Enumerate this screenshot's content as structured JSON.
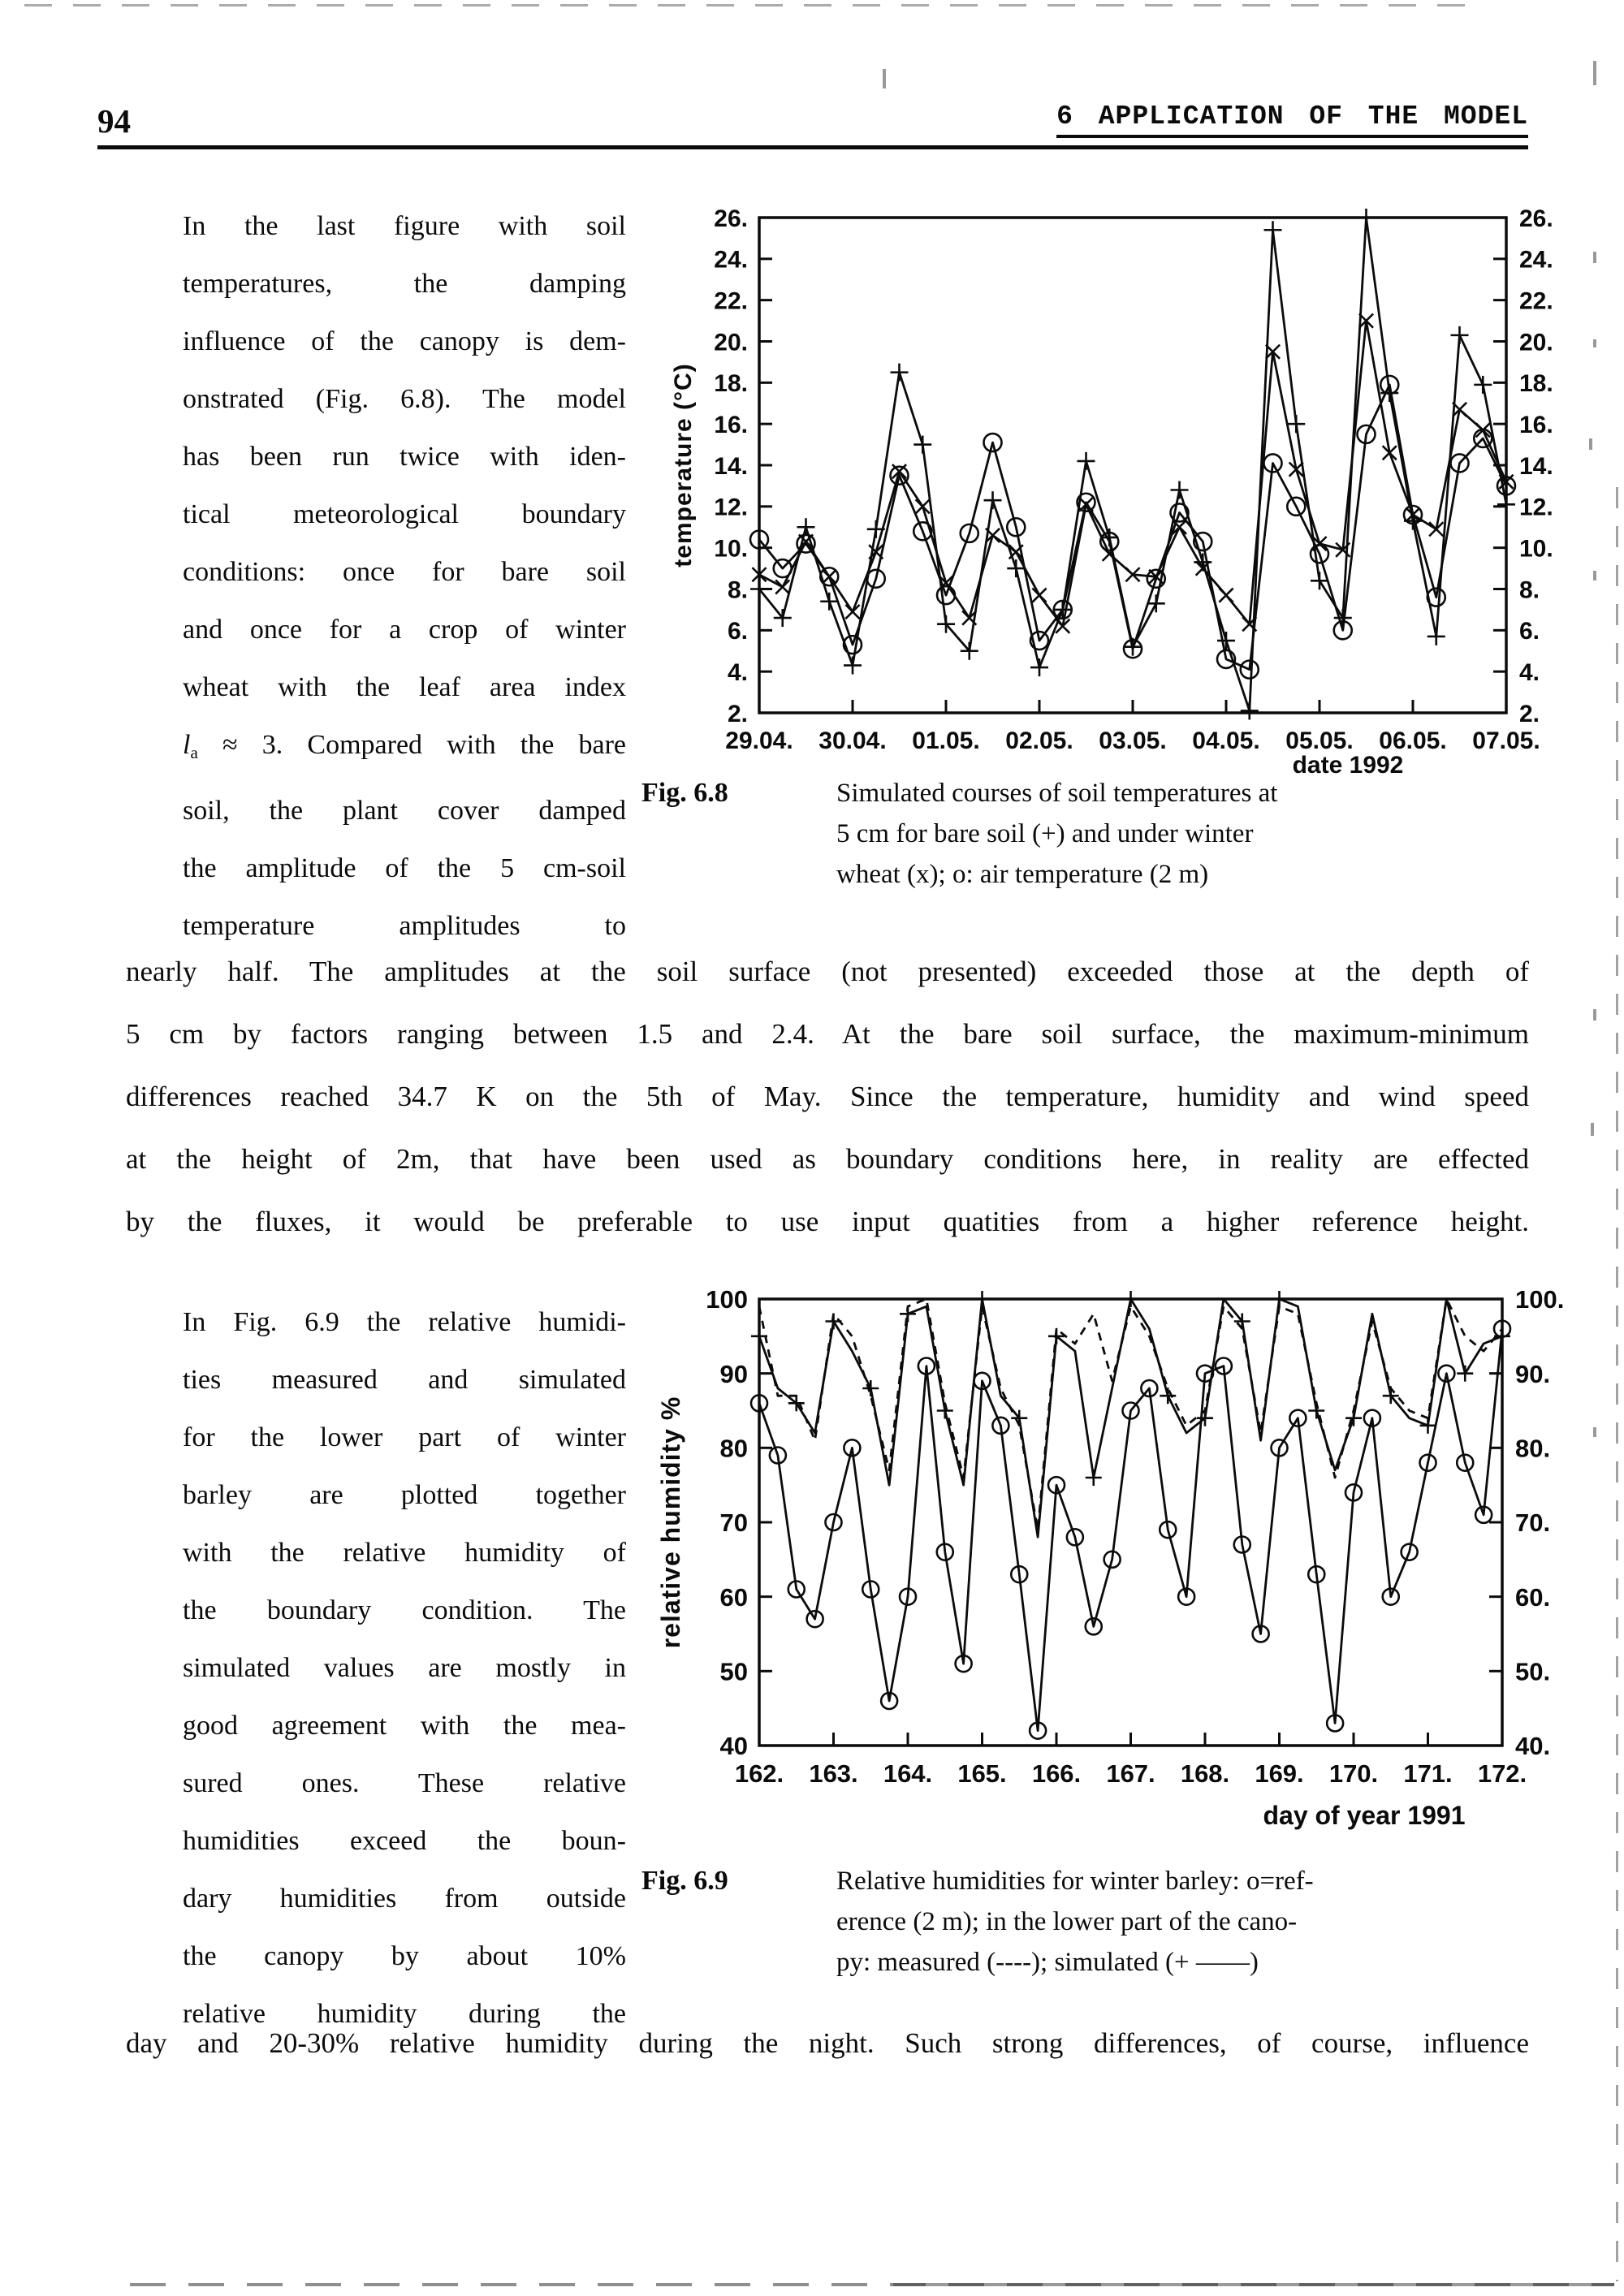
{
  "colors": {
    "ink": "#0b0b0b",
    "paper": "#ffffff"
  },
  "header": {
    "page_number": "94",
    "chapter": "6  APPLICATION OF THE MODEL"
  },
  "paragraphs": {
    "p1": [
      "In the last figure with soil",
      "temperatures, the damping",
      "influence of the canopy is dem-",
      "onstrated (Fig. 6.8). The model",
      "has been run twice with iden-",
      "tical meteorological boundary",
      "conditions: once for bare soil",
      "and once for a crop of winter",
      "wheat with the leaf area index",
      "l_a ≈ 3. Compared with the bare",
      "soil, the plant cover damped",
      "the amplitude of the 5 cm-soil",
      "temperature amplitudes to"
    ],
    "p2": [
      "nearly half. The amplitudes at the soil surface (not presented) exceeded those at the depth of",
      "5 cm by factors ranging between 1.5 and 2.4. At the bare soil surface, the maximum-minimum",
      "differences reached 34.7 K on the 5th of May. Since the temperature, humidity and wind speed",
      "at the height of 2m, that have been used as boundary conditions here, in reality are effected",
      "by the fluxes, it would be preferable to use input quatities from a higher reference height."
    ],
    "p3": [
      "In Fig. 6.9 the relative humidi-",
      "ties measured and simulated",
      "for the lower part of winter",
      "barley are plotted together",
      "with the relative humidity of",
      "the boundary condition. The",
      "simulated values are mostly in",
      "good agreement with the mea-",
      "sured ones. These relative",
      "humidities exceed the boun-",
      "dary humidities from outside",
      "the canopy by about 10%",
      "relative humidity during the"
    ],
    "p4": [
      "day and 20-30% relative humidity during the night. Such strong differences, of course, influence"
    ]
  },
  "fig68": {
    "label": "Fig. 6.8",
    "caption_lines": [
      "Simulated courses of soil temperatures at",
      "5 cm for bare soil (+) and under winter",
      "wheat (x); o: air temperature (2 m)"
    ]
  },
  "fig69": {
    "label": "Fig. 6.9",
    "caption_lines": [
      "Relative humidities for winter barley: o=ref-",
      "erence (2 m); in the lower part of the cano-",
      "py: measured (----); simulated (+ ——)"
    ]
  },
  "chart_data": [
    {
      "id": "fig-6-8",
      "type": "line",
      "title": "",
      "xlabel": "date  1992",
      "ylabel": "temperature  (°C)",
      "xlim": [
        0,
        8
      ],
      "ylim": [
        2,
        26
      ],
      "grid": false,
      "legend_position": "none (legend given in caption)",
      "x_tick_values": [
        0,
        1,
        2,
        3,
        4,
        5,
        6,
        7,
        8
      ],
      "x_tick_labels": [
        "29.04.",
        "30.04.",
        "01.05.",
        "02.05.",
        "03.05.",
        "04.05.",
        "05.05.",
        "06.05.",
        "07.05."
      ],
      "y_tick_values": [
        2,
        4,
        6,
        8,
        10,
        12,
        14,
        16,
        18,
        20,
        22,
        24,
        26
      ],
      "y_tick_labels_left": [
        "2.",
        "4.",
        "6.",
        "8.",
        "10.",
        "12.",
        "14.",
        "16.",
        "18.",
        "20.",
        "22.",
        "24.",
        "26."
      ],
      "y_tick_labels_right": [
        "2.",
        "4.",
        "6.",
        "8.",
        "10.",
        "12.",
        "14.",
        "16.",
        "18.",
        "20.",
        "22.",
        "24.",
        "26."
      ],
      "x_unit": "days since 29.04.1992 00:00 (approx.)",
      "x": [
        0,
        0.25,
        0.5,
        0.75,
        1,
        1.25,
        1.5,
        1.75,
        2,
        2.25,
        2.5,
        2.75,
        3,
        3.25,
        3.5,
        3.75,
        4,
        4.25,
        4.5,
        4.75,
        5,
        5.25,
        5.5,
        5.75,
        6,
        6.25,
        6.5,
        6.75,
        7,
        7.25,
        7.5,
        7.75,
        8
      ],
      "series": [
        {
          "name": "bare soil (+)",
          "marker": "plus",
          "marker_every": 1,
          "dashed": false,
          "values": [
            8.0,
            6.6,
            11.0,
            7.4,
            4.3,
            10.9,
            18.5,
            15.0,
            6.3,
            5.0,
            12.3,
            9.0,
            4.2,
            7.0,
            14.2,
            10.5,
            5.2,
            7.3,
            12.8,
            9.3,
            5.5,
            2.1,
            25.4,
            16.0,
            8.4,
            6.6,
            26.0,
            17.5,
            11.3,
            5.7,
            20.3,
            17.9,
            12.1
          ]
        },
        {
          "name": "winter wheat (x)",
          "marker": "cross",
          "marker_every": 1,
          "dashed": false,
          "values": [
            8.7,
            8.1,
            10.3,
            8.6,
            6.9,
            9.8,
            13.7,
            12.0,
            8.3,
            6.6,
            10.6,
            9.8,
            7.7,
            6.2,
            12.1,
            9.7,
            8.7,
            8.6,
            11.0,
            9.0,
            7.7,
            6.3,
            19.5,
            13.8,
            10.2,
            9.9,
            21.0,
            14.6,
            11.6,
            10.9,
            16.7,
            15.7,
            13.2
          ]
        },
        {
          "name": "air temperature (2 m) (o)",
          "marker": "circle",
          "marker_every": 1,
          "dashed": false,
          "values": [
            10.4,
            9.0,
            10.2,
            8.6,
            5.3,
            8.5,
            13.5,
            10.8,
            7.7,
            10.7,
            15.1,
            11.0,
            5.5,
            7.0,
            12.2,
            10.3,
            5.1,
            8.5,
            11.7,
            10.3,
            4.6,
            4.1,
            14.1,
            12.0,
            9.7,
            6.0,
            15.5,
            17.9,
            11.6,
            7.6,
            14.1,
            15.3,
            13.0
          ]
        }
      ]
    },
    {
      "id": "fig-6-9",
      "type": "line",
      "title": "",
      "xlabel": "day of year  1991",
      "ylabel": "relative humidity  %",
      "xlim": [
        162,
        172
      ],
      "ylim": [
        40,
        100
      ],
      "grid": false,
      "legend_position": "none (legend given in caption)",
      "x_tick_values": [
        162,
        163,
        164,
        165,
        166,
        167,
        168,
        169,
        170,
        171,
        172
      ],
      "x_tick_labels": [
        "162.",
        "163.",
        "164.",
        "165.",
        "166.",
        "167.",
        "168.",
        "169.",
        "170.",
        "171.",
        "172."
      ],
      "y_tick_values": [
        40,
        50,
        60,
        70,
        80,
        90,
        100
      ],
      "y_tick_labels_left": [
        "40",
        "50",
        "60",
        "70",
        "80",
        "90",
        "100"
      ],
      "y_tick_labels_right": [
        "40.",
        "50.",
        "60.",
        "70.",
        "80.",
        "90.",
        "100."
      ],
      "x_unit": "day of year 1991 (approx. 6-hourly samples)",
      "x": [
        162,
        162.25,
        162.5,
        162.75,
        163,
        163.25,
        163.5,
        163.75,
        164,
        164.25,
        164.5,
        164.75,
        165,
        165.25,
        165.5,
        165.75,
        166,
        166.25,
        166.5,
        166.75,
        167,
        167.25,
        167.5,
        167.75,
        168,
        168.25,
        168.5,
        168.75,
        169,
        169.25,
        169.5,
        169.75,
        170,
        170.25,
        170.5,
        170.75,
        171,
        171.25,
        171.5,
        171.75,
        172
      ],
      "series": [
        {
          "name": "measured (----)",
          "marker": null,
          "marker_every": 1,
          "dashed": true,
          "values": [
            99,
            87,
            87,
            81,
            98,
            95,
            87,
            77,
            99,
            100,
            86,
            76,
            99,
            88,
            83,
            69,
            96,
            94,
            98,
            89,
            99,
            95,
            88,
            83,
            85,
            99,
            96,
            82,
            99,
            98,
            86,
            76,
            85,
            97,
            88,
            85,
            84,
            100,
            95,
            93,
            96
          ]
        },
        {
          "name": "simulated (+ —)",
          "marker": "plus",
          "marker_every": 2,
          "dashed": false,
          "values": [
            95,
            88,
            86,
            82,
            97,
            93,
            88,
            75,
            98,
            99,
            85,
            75,
            100,
            87,
            84,
            68,
            95,
            93,
            76,
            88,
            100,
            96,
            87,
            82,
            84,
            100,
            97,
            81,
            100,
            99,
            85,
            77,
            84,
            98,
            87,
            84,
            83,
            100,
            90,
            94,
            95
          ]
        },
        {
          "name": "reference (2 m) (o)",
          "marker": "circle",
          "marker_every": 1,
          "dashed": false,
          "values": [
            86,
            79,
            61,
            57,
            70,
            80,
            61,
            46,
            60,
            91,
            66,
            51,
            89,
            83,
            63,
            42,
            75,
            68,
            56,
            65,
            85,
            88,
            69,
            60,
            90,
            91,
            67,
            55,
            80,
            84,
            63,
            43,
            74,
            84,
            60,
            66,
            78,
            90,
            78,
            71,
            96
          ]
        }
      ]
    }
  ]
}
